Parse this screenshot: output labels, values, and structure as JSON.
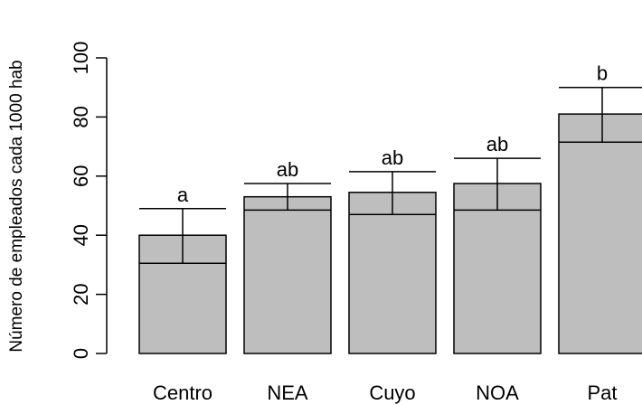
{
  "chart_data": {
    "type": "bar",
    "title": "",
    "xlabel": "",
    "ylabel": "Número de empleados cada 1000 hab",
    "ylim": [
      0,
      100
    ],
    "yticks": [
      0,
      20,
      40,
      60,
      80,
      100
    ],
    "ytick_labels": [
      "0",
      "20",
      "40",
      "60",
      "80",
      "100"
    ],
    "grid": false,
    "categories": [
      "Centro",
      "NEA",
      "Cuyo",
      "NOA",
      "Pat"
    ],
    "values": [
      40,
      53,
      54.5,
      57.5,
      81
    ],
    "error_low": [
      30.5,
      48.5,
      47,
      48.5,
      71.5
    ],
    "error_high": [
      49,
      57.5,
      61.5,
      66,
      90
    ],
    "significance_labels": [
      "a",
      "ab",
      "ab",
      "ab",
      "b"
    ],
    "bar_color": "#bebebe",
    "edge_color": "#000000"
  }
}
